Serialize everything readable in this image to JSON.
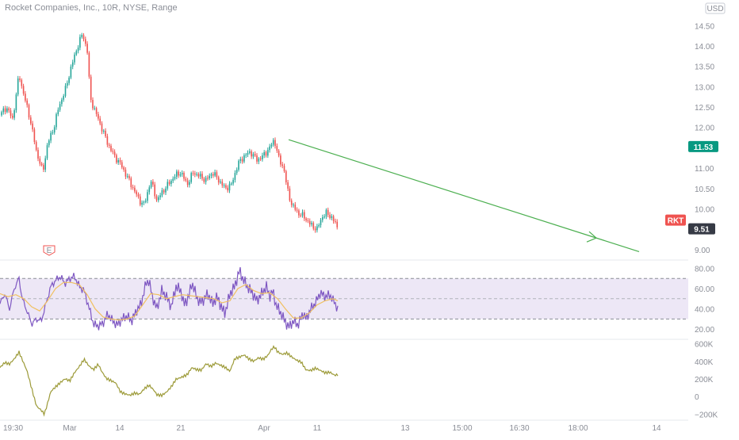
{
  "title": "Rocket Companies, Inc., 10R, NYSE, Range",
  "currency": "USD",
  "symbol": "RKT",
  "chart_data": [
    {
      "type": "candlestick",
      "symbol": "RKT",
      "price_ticks": [
        "14.50",
        "14.00",
        "13.50",
        "13.00",
        "12.50",
        "12.00",
        "11.50",
        "11.00",
        "10.50",
        "10.00",
        "9.50",
        "9.00"
      ],
      "ylim": [
        8.9,
        14.7
      ],
      "price_path": [
        [
          0,
          12.3
        ],
        [
          8,
          12.5
        ],
        [
          16,
          12.2
        ],
        [
          24,
          13.3
        ],
        [
          30,
          12.8
        ],
        [
          38,
          12.2
        ],
        [
          46,
          11.4
        ],
        [
          54,
          10.9
        ],
        [
          60,
          11.6
        ],
        [
          68,
          12.0
        ],
        [
          74,
          12.5
        ],
        [
          82,
          12.9
        ],
        [
          90,
          13.5
        ],
        [
          98,
          14.0
        ],
        [
          104,
          14.3
        ],
        [
          110,
          13.9
        ],
        [
          114,
          12.7
        ],
        [
          120,
          12.4
        ],
        [
          128,
          12.0
        ],
        [
          136,
          11.6
        ],
        [
          144,
          11.3
        ],
        [
          152,
          11.1
        ],
        [
          160,
          10.8
        ],
        [
          168,
          10.5
        ],
        [
          176,
          10.2
        ],
        [
          182,
          10.1
        ],
        [
          190,
          10.7
        ],
        [
          198,
          10.2
        ],
        [
          204,
          10.4
        ],
        [
          212,
          10.6
        ],
        [
          220,
          10.8
        ],
        [
          228,
          10.9
        ],
        [
          236,
          10.6
        ],
        [
          244,
          10.9
        ],
        [
          252,
          10.8
        ],
        [
          260,
          10.7
        ],
        [
          268,
          10.9
        ],
        [
          276,
          10.7
        ],
        [
          284,
          10.5
        ],
        [
          292,
          10.6
        ],
        [
          300,
          11.1
        ],
        [
          308,
          11.3
        ],
        [
          316,
          11.4
        ],
        [
          324,
          11.2
        ],
        [
          332,
          11.3
        ],
        [
          340,
          11.5
        ],
        [
          346,
          11.7
        ],
        [
          352,
          11.2
        ],
        [
          358,
          11.0
        ],
        [
          362,
          10.5
        ],
        [
          368,
          10.1
        ],
        [
          376,
          9.9
        ],
        [
          384,
          9.8
        ],
        [
          392,
          9.6
        ],
        [
          400,
          9.5
        ],
        [
          406,
          9.8
        ],
        [
          412,
          9.9
        ],
        [
          418,
          9.8
        ],
        [
          424,
          9.6
        ],
        [
          427,
          9.51
        ]
      ],
      "last_price": "9.51",
      "last_price_value": 9.51,
      "marker_price": "11.53",
      "marker_price_value": 11.53,
      "trend_line": [
        [
          364,
          11.7
        ],
        [
          806,
          8.95
        ]
      ],
      "earnings_marker_label": "E"
    },
    {
      "type": "line",
      "name": "oscillator",
      "ticks": [
        "80.00",
        "60.00",
        "40.00",
        "20.00"
      ],
      "ylim": [
        10,
        85
      ],
      "band": [
        30,
        70
      ],
      "midline": 50,
      "path": [
        [
          0,
          45
        ],
        [
          6,
          55
        ],
        [
          12,
          40
        ],
        [
          18,
          60
        ],
        [
          24,
          70
        ],
        [
          28,
          50
        ],
        [
          34,
          38
        ],
        [
          40,
          25
        ],
        [
          46,
          30
        ],
        [
          52,
          28
        ],
        [
          58,
          45
        ],
        [
          64,
          62
        ],
        [
          70,
          68
        ],
        [
          76,
          72
        ],
        [
          82,
          65
        ],
        [
          88,
          70
        ],
        [
          94,
          72
        ],
        [
          100,
          62
        ],
        [
          106,
          58
        ],
        [
          112,
          42
        ],
        [
          118,
          25
        ],
        [
          124,
          23
        ],
        [
          130,
          26
        ],
        [
          136,
          35
        ],
        [
          142,
          28
        ],
        [
          148,
          24
        ],
        [
          154,
          30
        ],
        [
          160,
          33
        ],
        [
          166,
          28
        ],
        [
          172,
          38
        ],
        [
          178,
          45
        ],
        [
          184,
          65
        ],
        [
          188,
          68
        ],
        [
          192,
          52
        ],
        [
          198,
          40
        ],
        [
          204,
          58
        ],
        [
          210,
          52
        ],
        [
          216,
          42
        ],
        [
          222,
          62
        ],
        [
          228,
          58
        ],
        [
          232,
          44
        ],
        [
          238,
          52
        ],
        [
          242,
          66
        ],
        [
          248,
          52
        ],
        [
          252,
          46
        ],
        [
          258,
          50
        ],
        [
          262,
          55
        ],
        [
          268,
          45
        ],
        [
          274,
          52
        ],
        [
          280,
          40
        ],
        [
          284,
          36
        ],
        [
          290,
          55
        ],
        [
          296,
          62
        ],
        [
          302,
          78
        ],
        [
          306,
          70
        ],
        [
          312,
          62
        ],
        [
          318,
          56
        ],
        [
          324,
          48
        ],
        [
          330,
          55
        ],
        [
          336,
          62
        ],
        [
          340,
          52
        ],
        [
          344,
          58
        ],
        [
          348,
          44
        ],
        [
          354,
          36
        ],
        [
          360,
          27
        ],
        [
          364,
          22
        ],
        [
          370,
          28
        ],
        [
          376,
          24
        ],
        [
          382,
          36
        ],
        [
          386,
          30
        ],
        [
          392,
          40
        ],
        [
          398,
          46
        ],
        [
          404,
          56
        ],
        [
          410,
          52
        ],
        [
          416,
          54
        ],
        [
          422,
          46
        ],
        [
          426,
          40
        ]
      ],
      "ma_path": [
        [
          0,
          55
        ],
        [
          10,
          52
        ],
        [
          20,
          54
        ],
        [
          30,
          50
        ],
        [
          40,
          42
        ],
        [
          50,
          38
        ],
        [
          60,
          48
        ],
        [
          70,
          60
        ],
        [
          80,
          66
        ],
        [
          90,
          66
        ],
        [
          100,
          64
        ],
        [
          110,
          54
        ],
        [
          120,
          40
        ],
        [
          130,
          32
        ],
        [
          140,
          30
        ],
        [
          150,
          29
        ],
        [
          160,
          30
        ],
        [
          170,
          33
        ],
        [
          180,
          44
        ],
        [
          190,
          55
        ],
        [
          200,
          54
        ],
        [
          210,
          50
        ],
        [
          220,
          52
        ],
        [
          230,
          54
        ],
        [
          240,
          53
        ],
        [
          250,
          52
        ],
        [
          260,
          51
        ],
        [
          270,
          50
        ],
        [
          280,
          46
        ],
        [
          290,
          48
        ],
        [
          300,
          60
        ],
        [
          310,
          64
        ],
        [
          320,
          58
        ],
        [
          330,
          55
        ],
        [
          340,
          56
        ],
        [
          350,
          50
        ],
        [
          360,
          40
        ],
        [
          370,
          31
        ],
        [
          380,
          31
        ],
        [
          390,
          36
        ],
        [
          400,
          44
        ],
        [
          410,
          48
        ],
        [
          420,
          50
        ],
        [
          426,
          48
        ]
      ]
    },
    {
      "type": "line",
      "name": "volume-based indicator",
      "ticks": [
        "600K",
        "400K",
        "200K",
        "0",
        "−200K"
      ],
      "ylim": [
        -250000,
        650000
      ],
      "path": [
        [
          0,
          330000
        ],
        [
          6,
          380000
        ],
        [
          12,
          360000
        ],
        [
          18,
          420000
        ],
        [
          24,
          500000
        ],
        [
          28,
          420000
        ],
        [
          34,
          300000
        ],
        [
          40,
          100000
        ],
        [
          46,
          -100000
        ],
        [
          52,
          -150000
        ],
        [
          56,
          -200000
        ],
        [
          60,
          -80000
        ],
        [
          64,
          50000
        ],
        [
          70,
          100000
        ],
        [
          76,
          150000
        ],
        [
          82,
          200000
        ],
        [
          88,
          180000
        ],
        [
          94,
          280000
        ],
        [
          100,
          350000
        ],
        [
          106,
          430000
        ],
        [
          112,
          350000
        ],
        [
          118,
          300000
        ],
        [
          124,
          360000
        ],
        [
          128,
          280000
        ],
        [
          134,
          200000
        ],
        [
          140,
          180000
        ],
        [
          146,
          160000
        ],
        [
          152,
          60000
        ],
        [
          158,
          40000
        ],
        [
          164,
          20000
        ],
        [
          170,
          40000
        ],
        [
          176,
          20000
        ],
        [
          182,
          80000
        ],
        [
          188,
          120000
        ],
        [
          194,
          70000
        ],
        [
          198,
          20000
        ],
        [
          204,
          20000
        ],
        [
          210,
          60000
        ],
        [
          216,
          120000
        ],
        [
          222,
          200000
        ],
        [
          230,
          220000
        ],
        [
          236,
          240000
        ],
        [
          242,
          320000
        ],
        [
          248,
          300000
        ],
        [
          254,
          300000
        ],
        [
          260,
          380000
        ],
        [
          266,
          350000
        ],
        [
          272,
          390000
        ],
        [
          278,
          360000
        ],
        [
          284,
          330000
        ],
        [
          290,
          280000
        ],
        [
          296,
          420000
        ],
        [
          302,
          440000
        ],
        [
          308,
          470000
        ],
        [
          314,
          430000
        ],
        [
          320,
          410000
        ],
        [
          326,
          450000
        ],
        [
          332,
          430000
        ],
        [
          338,
          470000
        ],
        [
          342,
          530000
        ],
        [
          346,
          560000
        ],
        [
          350,
          500000
        ],
        [
          356,
          470000
        ],
        [
          362,
          490000
        ],
        [
          368,
          450000
        ],
        [
          374,
          420000
        ],
        [
          380,
          400000
        ],
        [
          386,
          310000
        ],
        [
          392,
          300000
        ],
        [
          398,
          320000
        ],
        [
          404,
          290000
        ],
        [
          410,
          260000
        ],
        [
          416,
          270000
        ],
        [
          422,
          240000
        ],
        [
          426,
          250000
        ]
      ]
    }
  ],
  "x_axis": {
    "labels": [
      "19:30",
      "Mar",
      "14",
      "21",
      "Apr",
      "11",
      "13",
      "15:00",
      "16:30",
      "18:00",
      "14"
    ],
    "x_index": [
      0,
      88,
      151,
      228,
      333,
      400,
      511,
      583,
      655,
      729,
      828
    ]
  },
  "colors": {
    "up": "#26a69a",
    "down": "#ef5350",
    "trend": "#4caf50",
    "marker_bg": "#089981",
    "last_bg": "#363a45",
    "symbol_bg": "#ef5350",
    "osc_line": "#7e57c2",
    "osc_ma": "#f0c060",
    "osc_band": "#ede7f6",
    "vol_line": "#9c9a38",
    "axis_text": "#8a8d96",
    "divider": "#e6e8ee"
  }
}
